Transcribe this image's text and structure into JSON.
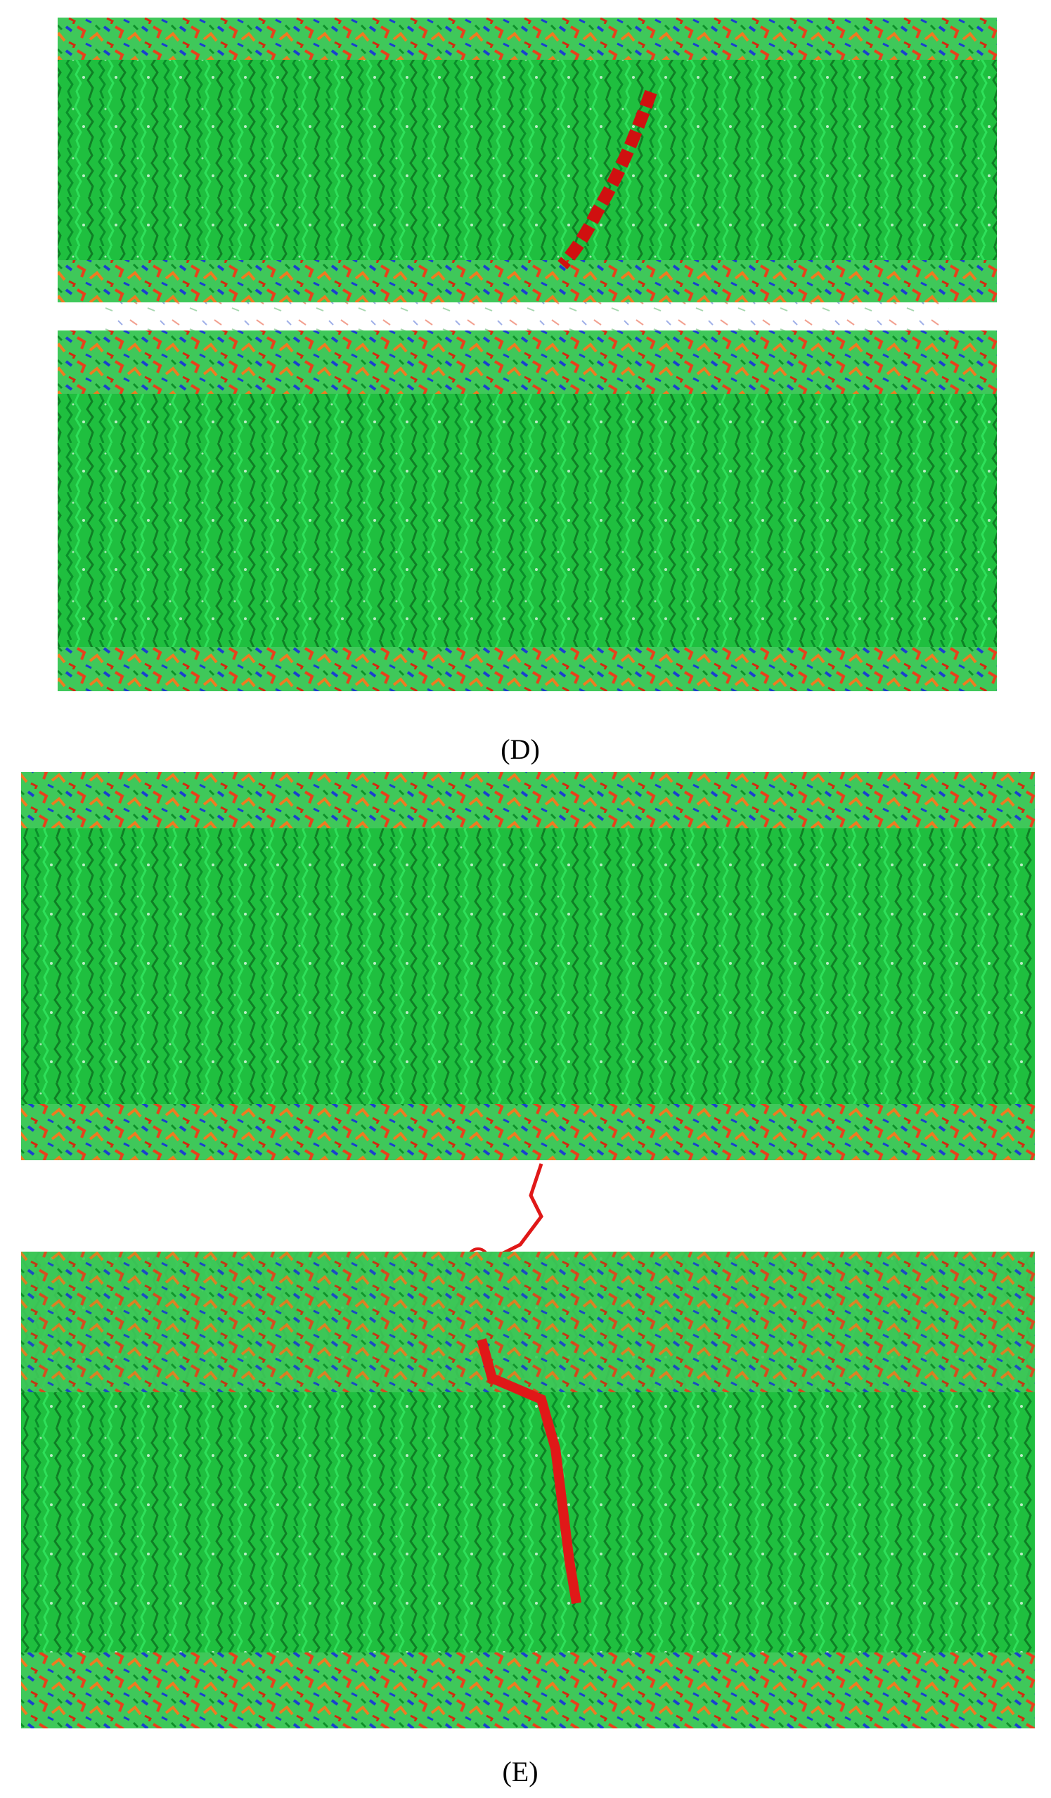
{
  "panels": [
    {
      "label": "(D)"
    },
    {
      "label": "(E)"
    }
  ]
}
